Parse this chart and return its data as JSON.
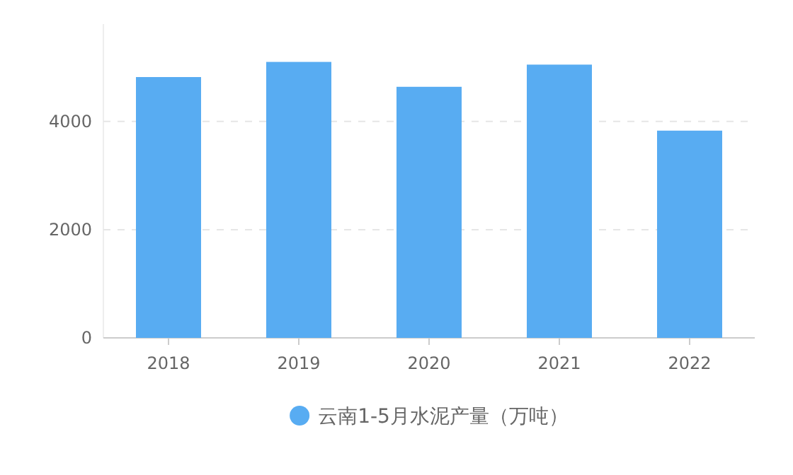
{
  "chart_data": {
    "type": "bar",
    "categories": [
      "2018",
      "2019",
      "2020",
      "2021",
      "2022"
    ],
    "series": [
      {
        "name": "云南1-5月水泥产量（万吨）",
        "color": "#58acf2",
        "values": [
          4820,
          5100,
          4640,
          5050,
          3830
        ]
      }
    ],
    "ylim": [
      0,
      5800
    ],
    "yticks": [
      0,
      2000,
      4000
    ],
    "grid": "y",
    "legend": "bottom"
  }
}
